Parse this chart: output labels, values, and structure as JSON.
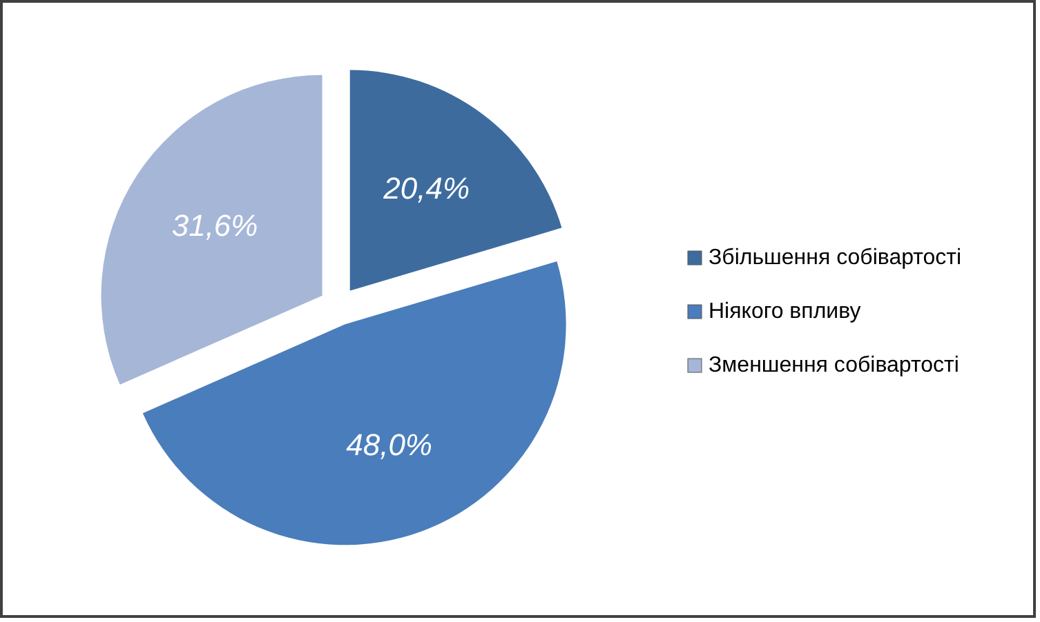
{
  "chart_data": {
    "type": "pie",
    "categories": [
      "Збільшення собівартості",
      "Ніякого впливу",
      "Зменшення собівартості"
    ],
    "values": [
      20.4,
      48.0,
      31.6
    ],
    "colors": [
      "#3d6b9e",
      "#4a7dbb",
      "#a6b6d7"
    ],
    "value_labels": [
      "20,4%",
      "48,0%",
      "31,6%"
    ],
    "legend": "right"
  }
}
